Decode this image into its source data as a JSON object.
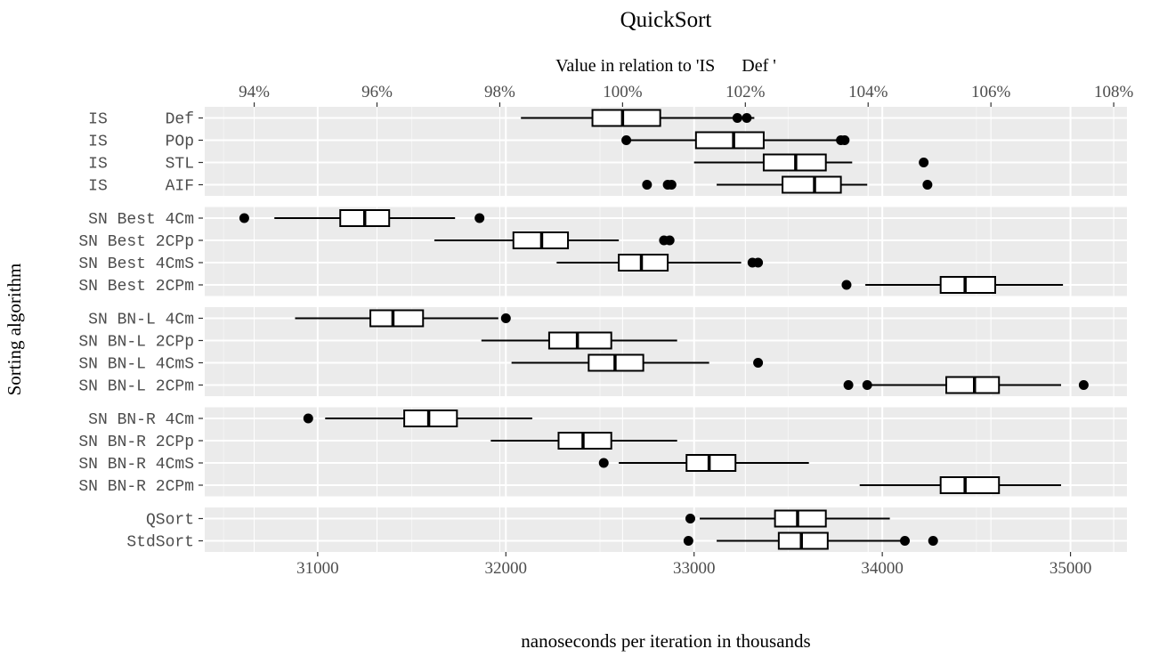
{
  "chart_data": {
    "type": "boxplot",
    "title": "QuickSort",
    "top_axis_label": "Value in relation to 'IS      Def '",
    "xlabel": "nanoseconds per iteration in thousands",
    "ylabel": "Sorting algorithm",
    "xlim": [
      30400,
      35300
    ],
    "x_ticks": [
      31000,
      32000,
      33000,
      34000,
      35000
    ],
    "x_tick_labels": [
      "31000",
      "32000",
      "33000",
      "34000",
      "35000"
    ],
    "top_ticks": [
      94,
      96,
      98,
      100,
      102,
      104,
      106,
      108
    ],
    "top_tick_labels": [
      "94%",
      "96%",
      "98%",
      "100%",
      "102%",
      "104%",
      "106%",
      "108%"
    ],
    "reference_value": 32620,
    "grid": true,
    "panels": [
      {
        "rows": [
          {
            "label": "IS      Def",
            "whisker_low": 32080,
            "q1": 32460,
            "median": 32620,
            "q3": 32820,
            "whisker_high": 33320,
            "outliers": [
              33230,
              33280
            ]
          },
          {
            "label": "IS      POp",
            "whisker_low": 32640,
            "q1": 33010,
            "median": 33210,
            "q3": 33370,
            "whisker_high": 33770,
            "outliers": [
              32640,
              33780,
              33800
            ]
          },
          {
            "label": "IS      STL",
            "whisker_low": 33000,
            "q1": 33370,
            "median": 33540,
            "q3": 33700,
            "whisker_high": 33840,
            "outliers": [
              34220
            ]
          },
          {
            "label": "IS      AIF",
            "whisker_low": 33120,
            "q1": 33470,
            "median": 33640,
            "q3": 33780,
            "whisker_high": 33920,
            "outliers": [
              32750,
              32860,
              32880,
              34240
            ]
          }
        ]
      },
      {
        "rows": [
          {
            "label": "SN Best 4Cm",
            "whisker_low": 30770,
            "q1": 31120,
            "median": 31250,
            "q3": 31380,
            "whisker_high": 31730,
            "outliers": [
              30610,
              31860
            ]
          },
          {
            "label": "SN Best 2CPp",
            "whisker_low": 31620,
            "q1": 32040,
            "median": 32190,
            "q3": 32330,
            "whisker_high": 32600,
            "outliers": [
              32840,
              32870
            ]
          },
          {
            "label": "SN Best 4CmS",
            "whisker_low": 32270,
            "q1": 32600,
            "median": 32720,
            "q3": 32860,
            "whisker_high": 33250,
            "outliers": [
              33310,
              33340
            ]
          },
          {
            "label": "SN Best 2CPm",
            "whisker_low": 33910,
            "q1": 34310,
            "median": 34440,
            "q3": 34600,
            "whisker_high": 34960,
            "outliers": [
              33810
            ]
          }
        ]
      },
      {
        "rows": [
          {
            "label": "SN BN-L 4Cm",
            "whisker_low": 30880,
            "q1": 31280,
            "median": 31400,
            "q3": 31560,
            "whisker_high": 31960,
            "outliers": [
              32000
            ]
          },
          {
            "label": "SN BN-L 2CPp",
            "whisker_low": 31870,
            "q1": 32230,
            "median": 32380,
            "q3": 32560,
            "whisker_high": 32910,
            "outliers": []
          },
          {
            "label": "SN BN-L 4CmS",
            "whisker_low": 32030,
            "q1": 32440,
            "median": 32580,
            "q3": 32730,
            "whisker_high": 33080,
            "outliers": [
              33340
            ]
          },
          {
            "label": "SN BN-L 2CPm",
            "whisker_low": 33920,
            "q1": 34340,
            "median": 34490,
            "q3": 34620,
            "whisker_high": 34950,
            "outliers": [
              33820,
              33920,
              35070
            ]
          }
        ]
      },
      {
        "rows": [
          {
            "label": "SN BN-R 4Cm",
            "whisker_low": 31040,
            "q1": 31460,
            "median": 31590,
            "q3": 31740,
            "whisker_high": 32140,
            "outliers": [
              30950
            ]
          },
          {
            "label": "SN BN-R 2CPp",
            "whisker_low": 31920,
            "q1": 32280,
            "median": 32410,
            "q3": 32560,
            "whisker_high": 32910,
            "outliers": []
          },
          {
            "label": "SN BN-R 4CmS",
            "whisker_low": 32600,
            "q1": 32960,
            "median": 33080,
            "q3": 33220,
            "whisker_high": 33610,
            "outliers": [
              32520
            ]
          },
          {
            "label": "SN BN-R 2CPm",
            "whisker_low": 33880,
            "q1": 34310,
            "median": 34440,
            "q3": 34620,
            "whisker_high": 34950,
            "outliers": []
          }
        ]
      },
      {
        "rows": [
          {
            "label": "QSort",
            "whisker_low": 33030,
            "q1": 33430,
            "median": 33550,
            "q3": 33700,
            "whisker_high": 34040,
            "outliers": [
              32980
            ]
          },
          {
            "label": "StdSort",
            "whisker_low": 33120,
            "q1": 33450,
            "median": 33570,
            "q3": 33710,
            "whisker_high": 34100,
            "outliers": [
              32970,
              34120,
              34270
            ]
          }
        ]
      }
    ]
  }
}
